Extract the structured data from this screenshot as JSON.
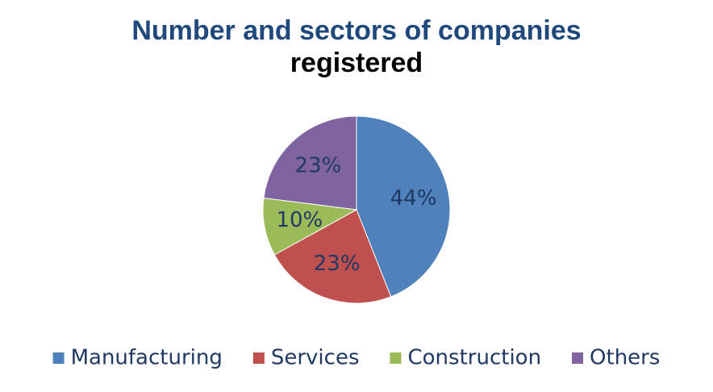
{
  "chart_data": {
    "type": "pie",
    "title": "Number and sectors of companies",
    "subtitle": "registered",
    "categories": [
      "Manufacturing",
      "Services",
      "Construction",
      "Others"
    ],
    "values": [
      44,
      23,
      10,
      23
    ],
    "value_labels": [
      "44%",
      "23%",
      "10%",
      "23%"
    ],
    "colors": [
      "#4f81bd",
      "#c0504d",
      "#9bbb59",
      "#8064a2"
    ],
    "legend": "bottom"
  }
}
